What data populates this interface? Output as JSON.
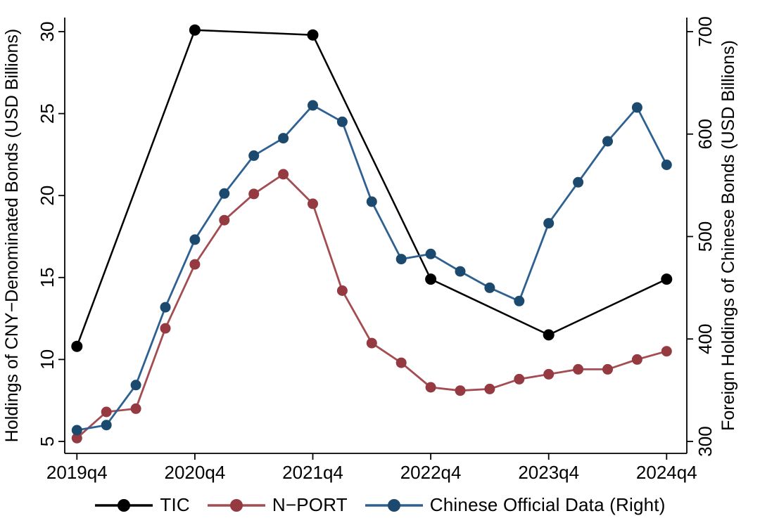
{
  "chart_data": {
    "type": "line",
    "title": "",
    "x_axis": {
      "label": "",
      "tick_labels": [
        "2019q4",
        "2020q4",
        "2021q4",
        "2022q4",
        "2023q4",
        "2024q4"
      ],
      "tick_quarters": [
        0,
        4,
        8,
        12,
        16,
        20
      ],
      "range_quarters": [
        0,
        20
      ]
    },
    "left_axis": {
      "label": "Holdings of CNY−Denominated Bonds (USD Billions)",
      "ticks": [
        5,
        10,
        15,
        20,
        25,
        30
      ],
      "range": [
        5,
        30
      ]
    },
    "right_axis": {
      "label": "Foreign Holdings of Chinese Bonds (USD Billions)",
      "ticks": [
        300,
        400,
        500,
        600,
        700
      ],
      "range": [
        300,
        700
      ]
    },
    "grid": false,
    "quarters": [
      "2019q4",
      "2020q1",
      "2020q2",
      "2020q3",
      "2020q4",
      "2021q1",
      "2021q2",
      "2021q3",
      "2021q4",
      "2022q1",
      "2022q2",
      "2022q3",
      "2022q4",
      "2023q1",
      "2023q2",
      "2023q3",
      "2023q4",
      "2024q1",
      "2024q2",
      "2024q3",
      "2024q4"
    ],
    "series": [
      {
        "name": "TIC",
        "axis": "left",
        "line_color": "#000000",
        "marker_color": "#000000",
        "quarter_indices": [
          0,
          4,
          8,
          12,
          16,
          20
        ],
        "values": [
          10.8,
          30.1,
          29.8,
          14.9,
          11.5,
          14.9
        ]
      },
      {
        "name": "N−PORT",
        "axis": "left",
        "line_color": "#A34C51",
        "marker_color": "#943A40",
        "quarter_indices": [
          0,
          1,
          2,
          3,
          4,
          5,
          6,
          7,
          8,
          9,
          10,
          11,
          12,
          13,
          14,
          15,
          16,
          17,
          18,
          19,
          20
        ],
        "values": [
          5.2,
          6.8,
          7.0,
          11.9,
          15.8,
          18.5,
          20.1,
          21.3,
          19.5,
          14.2,
          11.0,
          9.8,
          8.3,
          8.1,
          8.2,
          8.8,
          9.1,
          9.4,
          9.4,
          10.0,
          10.5
        ]
      },
      {
        "name": "Chinese Official Data (Right)",
        "axis": "right",
        "line_color": "#2E6191",
        "marker_color": "#1C4A6E",
        "quarter_indices": [
          0,
          1,
          2,
          3,
          4,
          5,
          6,
          7,
          8,
          9,
          10,
          11,
          12,
          13,
          14,
          15,
          16,
          17,
          18,
          19,
          20
        ],
        "values": [
          311,
          316,
          355,
          431,
          497,
          542,
          579,
          596,
          628,
          612,
          534,
          478,
          483,
          466,
          450,
          437,
          513,
          553,
          593,
          626,
          570
        ]
      }
    ],
    "legend": {
      "position": "bottom",
      "entries": [
        "TIC",
        "N−PORT",
        "Chinese Official Data (Right)"
      ]
    }
  }
}
